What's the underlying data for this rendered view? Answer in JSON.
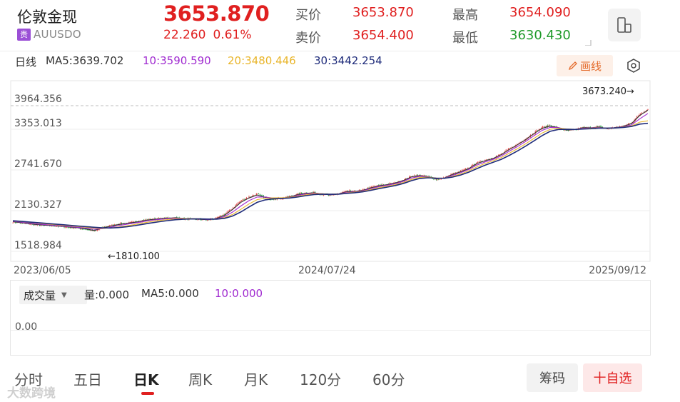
{
  "header": {
    "name": "伦敦金现",
    "badge": "贵",
    "code": "AUUSDO",
    "price": "3653.870",
    "change": "22.260",
    "change_pct": "0.61%",
    "bid_label": "买价",
    "bid": "3653.870",
    "ask_label": "卖价",
    "ask": "3654.400",
    "high_label": "最高",
    "high": "3654.090",
    "low_label": "最低",
    "low": "3630.430",
    "device_icon": "phone-switch-icon"
  },
  "ma_bar": {
    "period": "日线",
    "ma5": "MA5:3639.702",
    "ma10": "10:3590.590",
    "ma20": "20:3480.446",
    "ma30": "30:3442.254",
    "draw_label": "画线",
    "colors": {
      "ma5": "#333333",
      "ma10": "#a02bd0",
      "ma20": "#e9b52a",
      "ma30": "#1e2b7a"
    }
  },
  "chart_data": {
    "type": "candlestick",
    "y_ticks": [
      "3964.356",
      "3353.013",
      "2741.670",
      "2130.327",
      "1518.984"
    ],
    "ylim": [
      1518.984,
      3964.356
    ],
    "x_ticks": [
      "2023/06/05",
      "2024/07/24",
      "2025/09/12"
    ],
    "min_label": "←1810.100",
    "max_label": "3673.240→",
    "min_value": 1810.1,
    "max_value": 3673.24,
    "last_value": 3653.87,
    "series": [
      {
        "name": "close",
        "values": [
          1962,
          1945,
          1930,
          1915,
          1910,
          1905,
          1890,
          1880,
          1870,
          1850,
          1820,
          1880,
          1905,
          1928,
          1945,
          1960,
          1985,
          2000,
          2010,
          2020,
          2025,
          2010,
          2000,
          2000,
          1990,
          2020,
          2075,
          2170,
          2280,
          2335,
          2380,
          2320,
          2305,
          2315,
          2340,
          2380,
          2395,
          2400,
          2375,
          2360,
          2385,
          2420,
          2420,
          2440,
          2480,
          2510,
          2525,
          2550,
          2590,
          2650,
          2660,
          2640,
          2600,
          2620,
          2680,
          2720,
          2770,
          2850,
          2890,
          2920,
          2980,
          3060,
          3130,
          3210,
          3300,
          3380,
          3410,
          3370,
          3330,
          3345,
          3380,
          3375,
          3390,
          3360,
          3380,
          3400,
          3450,
          3580,
          3653
        ]
      },
      {
        "name": "MA5",
        "values": [
          1965,
          1950,
          1935,
          1920,
          1912,
          1906,
          1894,
          1884,
          1874,
          1856,
          1832,
          1870,
          1896,
          1922,
          1940,
          1956,
          1980,
          1996,
          2006,
          2018,
          2022,
          2012,
          2004,
          2000,
          1994,
          2012,
          2060,
          2150,
          2255,
          2320,
          2365,
          2330,
          2310,
          2315,
          2335,
          2372,
          2390,
          2398,
          2380,
          2365,
          2382,
          2414,
          2420,
          2436,
          2474,
          2504,
          2522,
          2546,
          2584,
          2640,
          2655,
          2642,
          2608,
          2620,
          2674,
          2714,
          2762,
          2838,
          2880,
          2914,
          2972,
          3050,
          3120,
          3198,
          3286,
          3366,
          3400,
          3375,
          3340,
          3348,
          3376,
          3376,
          3386,
          3364,
          3378,
          3396,
          3440,
          3560,
          3640
        ]
      },
      {
        "name": "MA10",
        "values": [
          1970,
          1958,
          1944,
          1930,
          1920,
          1912,
          1900,
          1890,
          1880,
          1866,
          1850,
          1860,
          1880,
          1905,
          1925,
          1945,
          1965,
          1985,
          1998,
          2010,
          2018,
          2014,
          2008,
          2004,
          1998,
          2006,
          2040,
          2110,
          2200,
          2280,
          2335,
          2335,
          2318,
          2318,
          2330,
          2360,
          2380,
          2392,
          2385,
          2372,
          2380,
          2405,
          2415,
          2430,
          2462,
          2492,
          2512,
          2536,
          2572,
          2622,
          2645,
          2640,
          2614,
          2618,
          2660,
          2700,
          2748,
          2815,
          2862,
          2900,
          2952,
          3025,
          3095,
          3170,
          3254,
          3336,
          3382,
          3378,
          3350,
          3350,
          3368,
          3372,
          3380,
          3368,
          3376,
          3390,
          3420,
          3510,
          3590
        ]
      },
      {
        "name": "MA20",
        "values": [
          1975,
          1966,
          1955,
          1944,
          1932,
          1922,
          1912,
          1902,
          1892,
          1880,
          1868,
          1864,
          1870,
          1885,
          1902,
          1922,
          1945,
          1966,
          1982,
          1996,
          2008,
          2012,
          2010,
          2008,
          2003,
          2004,
          2025,
          2075,
          2150,
          2230,
          2295,
          2318,
          2322,
          2322,
          2328,
          2348,
          2368,
          2384,
          2385,
          2378,
          2380,
          2396,
          2408,
          2422,
          2448,
          2476,
          2498,
          2522,
          2555,
          2600,
          2630,
          2634,
          2620,
          2618,
          2645,
          2682,
          2728,
          2788,
          2838,
          2880,
          2928,
          2995,
          3062,
          3135,
          3216,
          3296,
          3352,
          3370,
          3358,
          3352,
          3362,
          3368,
          3375,
          3370,
          3374,
          3384,
          3404,
          3460,
          3480
        ]
      },
      {
        "name": "MA30",
        "values": [
          1978,
          1970,
          1960,
          1950,
          1940,
          1930,
          1920,
          1910,
          1900,
          1890,
          1880,
          1872,
          1870,
          1876,
          1888,
          1905,
          1926,
          1946,
          1964,
          1980,
          1994,
          2002,
          2006,
          2006,
          2004,
          2003,
          2015,
          2050,
          2110,
          2185,
          2255,
          2292,
          2308,
          2314,
          2320,
          2336,
          2356,
          2372,
          2378,
          2376,
          2378,
          2390,
          2400,
          2414,
          2436,
          2462,
          2484,
          2508,
          2540,
          2582,
          2614,
          2624,
          2618,
          2616,
          2634,
          2666,
          2708,
          2762,
          2812,
          2856,
          2902,
          2962,
          3028,
          3100,
          3178,
          3258,
          3322,
          3350,
          3352,
          3350,
          3356,
          3362,
          3370,
          3370,
          3372,
          3380,
          3395,
          3430,
          3442
        ]
      }
    ]
  },
  "volume": {
    "indicator": "成交量",
    "vol": "量:0.000",
    "ma5": "MA5:0.000",
    "ma10": "10:0.000",
    "zero": "0.00"
  },
  "tabs": [
    {
      "label": "分时",
      "active": false
    },
    {
      "label": "五日",
      "active": false
    },
    {
      "label": "日K",
      "active": true
    },
    {
      "label": "周K",
      "active": false
    },
    {
      "label": "月K",
      "active": false
    },
    {
      "label": "120分",
      "active": false
    },
    {
      "label": "60分",
      "active": false
    }
  ],
  "actions": {
    "chip": "筹码",
    "favorite": "十自选"
  },
  "watermark": "大数跨境"
}
